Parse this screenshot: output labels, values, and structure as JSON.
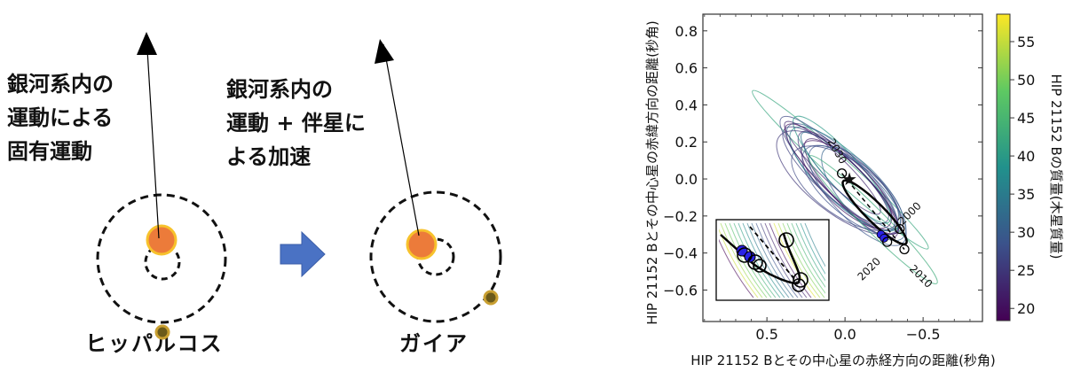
{
  "diagram": {
    "hipparcos": {
      "caption": "ヒッパルコス",
      "motion_label": "銀河系内の\n運動による\n固有運動"
    },
    "gaia": {
      "caption": "ガイア",
      "motion_label": "銀河系内の\n運動 + 伴星に\nよる加速"
    },
    "colors": {
      "star": "#ec7b3a",
      "star_ring": "#f7c22c",
      "companion": "#8a6d1c",
      "companion_ring": "#c9a032",
      "transition_arrow": "#4a72c4"
    }
  },
  "chart_data": {
    "type": "scatter",
    "xlabel": "HIP 21152 Bとその中心星の赤経方向の距離(秒角)",
    "ylabel": "HIP 21152 Bとその中心星の赤緯方向の距離(秒角)",
    "xlim": [
      0.91,
      -0.88
    ],
    "ylim": [
      -0.77,
      0.89
    ],
    "xticks": [
      "0.5",
      "0.0",
      "−0.5"
    ],
    "xtick_values": [
      0.5,
      0.0,
      -0.5
    ],
    "yticks": [
      "0.8",
      "0.6",
      "0.4",
      "0.2",
      "0.0",
      "−0.2",
      "−0.4",
      "−0.6"
    ],
    "ytick_values": [
      0.8,
      0.6,
      0.4,
      0.2,
      0.0,
      -0.2,
      -0.4,
      -0.6
    ],
    "colorbar": {
      "label": "HIP 21152 Bの質量(木星質量)",
      "range": [
        18.4,
        58.6
      ],
      "ticks": [
        "20",
        "25",
        "30",
        "35",
        "40",
        "45",
        "50",
        "55"
      ],
      "tick_values": [
        20,
        25,
        30,
        35,
        40,
        45,
        50,
        55
      ],
      "colormap": "viridis"
    },
    "sampled_orbits": [
      {
        "center": [
          0.03,
          0.05
        ],
        "a": 0.72,
        "b": 0.06,
        "angle": 42,
        "mass": 42
      },
      {
        "center": [
          0.05,
          0.03
        ],
        "a": 0.48,
        "b": 0.1,
        "angle": 45,
        "mass": 27
      },
      {
        "center": [
          0.02,
          0.01
        ],
        "a": 0.45,
        "b": 0.12,
        "angle": 44,
        "mass": 30
      },
      {
        "center": [
          -0.02,
          -0.02
        ],
        "a": 0.42,
        "b": 0.11,
        "angle": 46,
        "mass": 24
      },
      {
        "center": [
          0.0,
          0.0
        ],
        "a": 0.44,
        "b": 0.13,
        "angle": 43,
        "mass": 36
      },
      {
        "center": [
          -0.04,
          -0.05
        ],
        "a": 0.4,
        "b": 0.1,
        "angle": 47,
        "mass": 22
      },
      {
        "center": [
          -0.05,
          -0.06
        ],
        "a": 0.38,
        "b": 0.14,
        "angle": 40,
        "mass": 28
      },
      {
        "center": [
          0.02,
          0.05
        ],
        "a": 0.43,
        "b": 0.09,
        "angle": 48,
        "mass": 40
      },
      {
        "center": [
          -0.01,
          -0.03
        ],
        "a": 0.36,
        "b": 0.12,
        "angle": 44,
        "mass": 21
      },
      {
        "center": [
          0.04,
          -0.02
        ],
        "a": 0.46,
        "b": 0.16,
        "angle": 38,
        "mass": 25
      },
      {
        "center": [
          -0.03,
          -0.01
        ],
        "a": 0.41,
        "b": 0.08,
        "angle": 45,
        "mass": 33
      },
      {
        "center": [
          0.06,
          0.02
        ],
        "a": 0.42,
        "b": 0.11,
        "angle": 42,
        "mass": 26
      },
      {
        "center": [
          -0.08,
          -0.09
        ],
        "a": 0.4,
        "b": 0.13,
        "angle": 46,
        "mass": 29
      },
      {
        "center": [
          0.08,
          0.06
        ],
        "a": 0.4,
        "b": 0.07,
        "angle": 44,
        "mass": 23
      },
      {
        "center": [
          -0.12,
          -0.08
        ],
        "a": 0.36,
        "b": 0.12,
        "angle": 49,
        "mass": 31
      },
      {
        "center": [
          -0.18,
          -0.22
        ],
        "a": 0.55,
        "b": 0.06,
        "angle": 45,
        "mass": 43
      },
      {
        "center": [
          0.0,
          -0.05
        ],
        "a": 0.38,
        "b": 0.15,
        "angle": 35,
        "mass": 27
      },
      {
        "center": [
          0.02,
          0.0
        ],
        "a": 0.47,
        "b": 0.1,
        "angle": 44,
        "mass": 20
      }
    ],
    "best_orbit": {
      "center": [
        -0.19,
        -0.18
      ],
      "a": 0.27,
      "b": 0.05,
      "angle": 45
    },
    "epoch_markers": [
      {
        "year": "2030",
        "pos": [
          0.02,
          0.03
        ],
        "label_pos": [
          0.07,
          0.14
        ]
      },
      {
        "year": "2000",
        "pos": [
          -0.35,
          -0.27
        ],
        "label_pos": [
          -0.43,
          -0.2
        ]
      },
      {
        "year": "2010",
        "pos": [
          -0.38,
          -0.38
        ],
        "label_pos": [
          -0.47,
          -0.54
        ]
      },
      {
        "year": "2020",
        "pos": [
          -0.27,
          -0.34
        ],
        "label_pos": [
          -0.17,
          -0.5
        ]
      }
    ],
    "observations": [
      [
        -0.23,
        -0.3
      ],
      [
        -0.25,
        -0.32
      ]
    ],
    "observation_color": "#2a22e6"
  }
}
